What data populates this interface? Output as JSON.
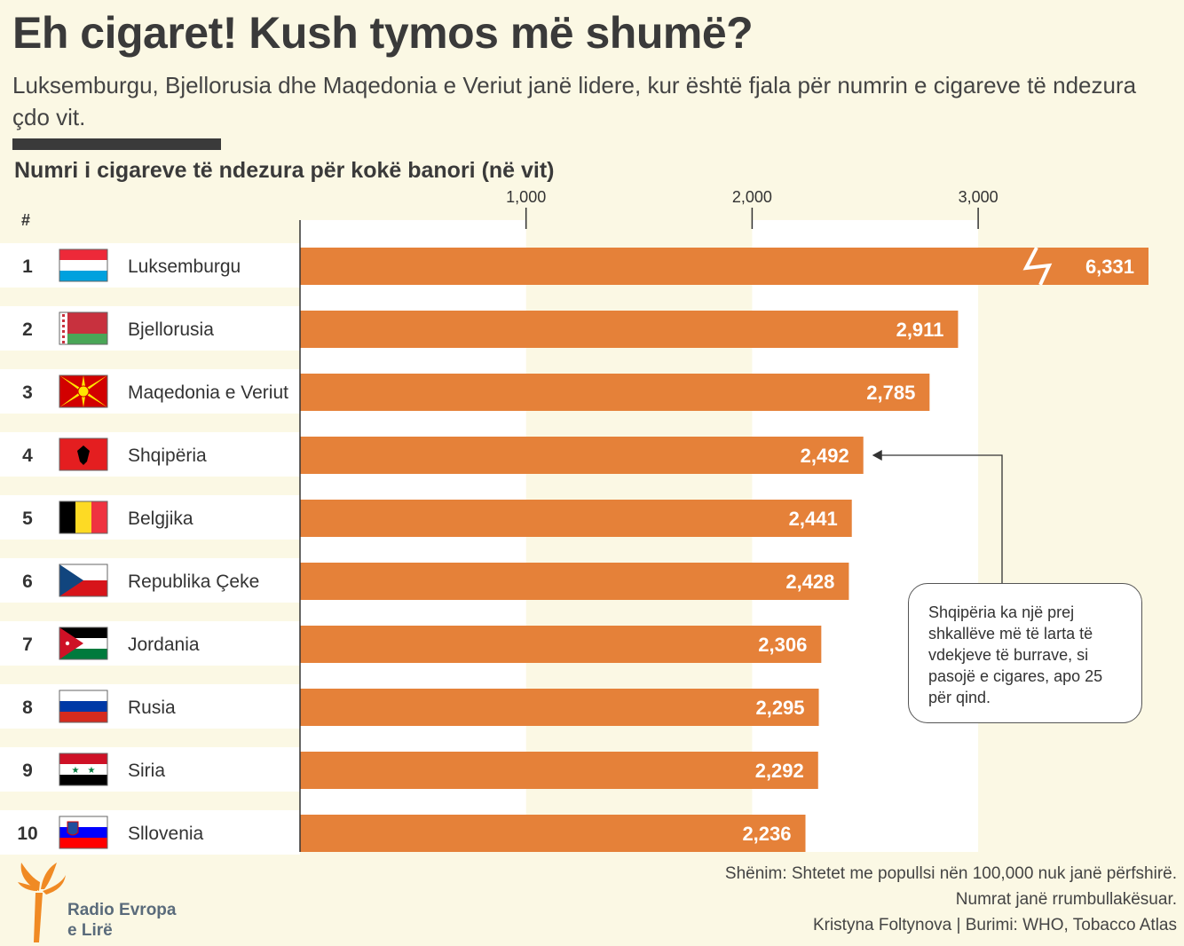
{
  "title": "Eh cigaret! Kush tymos më shumë?",
  "subtitle": "Luksemburgu, Bjellorusia dhe Maqedonia e Veriut janë lidere, kur është fjala për numrin e cigareve të ndezura çdo vit.",
  "rank_header": "#",
  "colors": {
    "bar": "#e58139",
    "background": "#fbf8e4",
    "row": "#ffffff",
    "text": "#333333"
  },
  "chart_data": {
    "type": "bar",
    "orientation": "horizontal",
    "title": "Numri i cigareve të ndezura për kokë banori (në vit)",
    "ranks": [
      "1",
      "2",
      "3",
      "4",
      "5",
      "6",
      "7",
      "8",
      "9",
      "10"
    ],
    "categories": [
      "Luksemburgu",
      "Bjellorusia",
      "Maqedonia e Veriut",
      "Shqipëria",
      "Belgjika",
      "Republika Çeke",
      "Jordania",
      "Rusia",
      "Siria",
      "Sllovenia"
    ],
    "values": [
      6331,
      2911,
      2785,
      2492,
      2441,
      2428,
      2306,
      2295,
      2292,
      2236
    ],
    "value_labels": [
      "6,331",
      "2,911",
      "2,785",
      "2,492",
      "2,441",
      "2,428",
      "2,306",
      "2,295",
      "2,292",
      "2,236"
    ],
    "flags": [
      "luxembourg-flag-icon",
      "belarus-flag-icon",
      "north-macedonia-flag-icon",
      "albania-flag-icon",
      "belgium-flag-icon",
      "czech-flag-icon",
      "jordan-flag-icon",
      "russia-flag-icon",
      "syria-flag-icon",
      "slovenia-flag-icon"
    ],
    "ticks": [
      1000,
      2000,
      3000
    ],
    "tick_labels": [
      "1,000",
      "2,000",
      "3,000"
    ],
    "xlim": [
      0,
      3750
    ],
    "axis_break": {
      "category": "Luksemburgu",
      "icon": "axis-break-icon"
    },
    "grid": true
  },
  "callout": {
    "target": "Shqipëria",
    "text": "Shqipëria ka një prej shkallëve më të larta të vdekjeve të burrave, si pasojë e cigares, apo 25 për qind."
  },
  "footnote": {
    "line1": "Shënim: Shtetet me popullsi nën 100,000 nuk janë përfshirë.",
    "line2": "Numrat janë rrumbullakësuar.",
    "line3": "Kristyna Foltynova | Burimi: WHO, Tobacco Atlas"
  },
  "logo": {
    "line1": "Radio Evropa",
    "line2": "e Lirë",
    "icon": "torch-logo-icon"
  }
}
